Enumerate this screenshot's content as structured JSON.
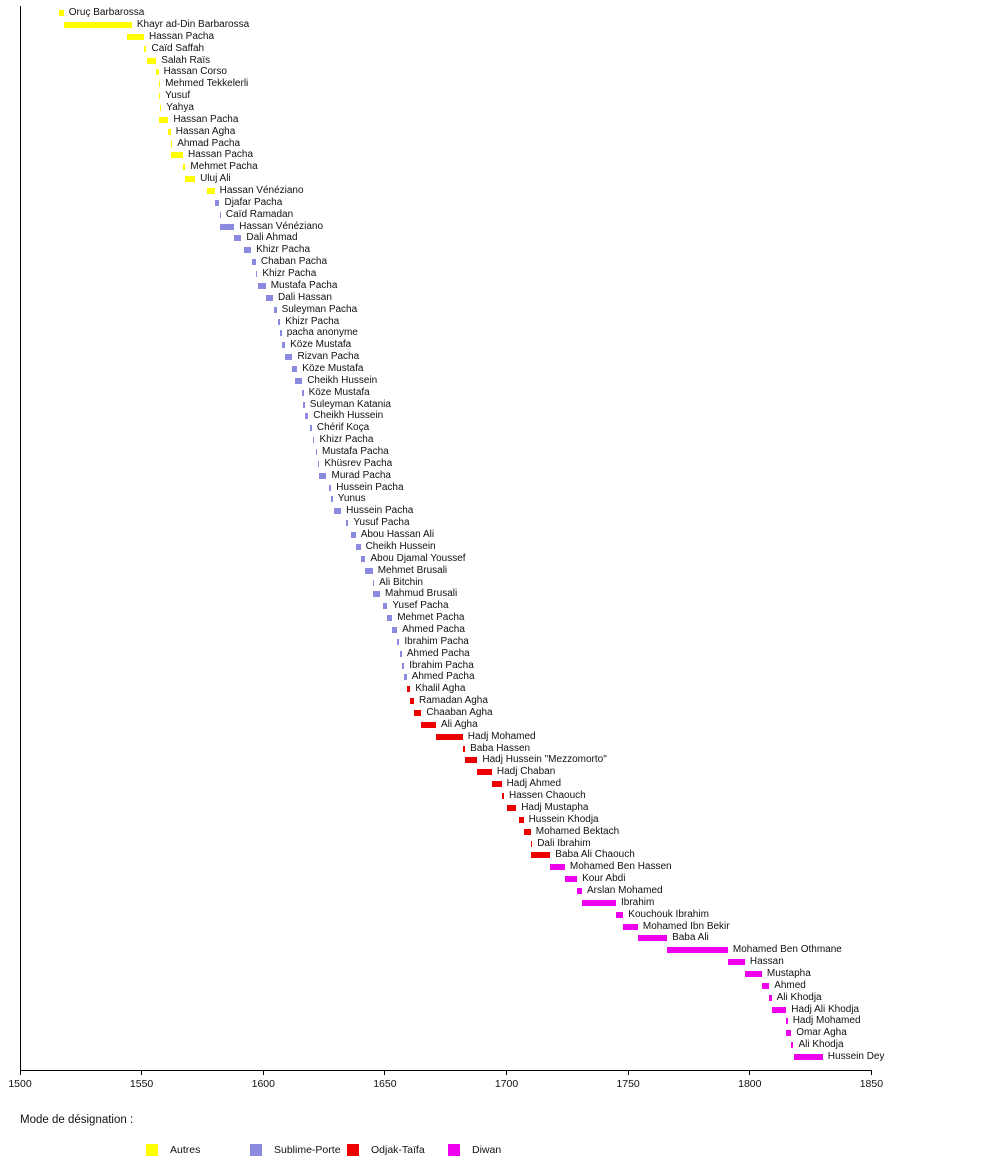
{
  "chart_data": {
    "type": "bar",
    "subtype": "gantt-timeline",
    "title": "",
    "xlabel": "",
    "ylabel": "",
    "xlim": [
      1500,
      1850
    ],
    "x_ticks": [
      1500,
      1550,
      1600,
      1650,
      1700,
      1750,
      1800,
      1850
    ],
    "grid": false,
    "legend": {
      "title": "Mode de désignation :",
      "position": "bottom",
      "items": [
        {
          "key": "autres",
          "label": "Autres",
          "color": "#FFFF00"
        },
        {
          "key": "sublime",
          "label": "Sublime-Porte",
          "color": "#8A8ADF"
        },
        {
          "key": "odjak",
          "label": "Odjak-Taïfa",
          "color": "#EE0000"
        },
        {
          "key": "diwan",
          "label": "Diwan",
          "color": "#EE00EE"
        }
      ]
    },
    "bars": [
      {
        "name": "Oruç Barbarossa",
        "start": 1516,
        "end": 1518,
        "group": "autres"
      },
      {
        "name": "Khayr ad-Din Barbarossa",
        "start": 1518,
        "end": 1546,
        "group": "autres"
      },
      {
        "name": "Hassan Pacha",
        "start": 1544,
        "end": 1551,
        "group": "autres"
      },
      {
        "name": "Caïd Saffah",
        "start": 1551,
        "end": 1552,
        "group": "autres"
      },
      {
        "name": "Salah Raïs",
        "start": 1552,
        "end": 1556,
        "group": "autres"
      },
      {
        "name": "Hassan Corso",
        "start": 1556,
        "end": 1557,
        "group": "autres"
      },
      {
        "name": "Mehmed Tekkelerli",
        "start": 1557,
        "end": 1557.5,
        "group": "autres"
      },
      {
        "name": "Yusuf",
        "start": 1557,
        "end": 1557.5,
        "group": "autres"
      },
      {
        "name": "Yahya",
        "start": 1557.5,
        "end": 1558,
        "group": "autres"
      },
      {
        "name": "Hassan Pacha",
        "start": 1557,
        "end": 1561,
        "group": "autres"
      },
      {
        "name": "Hassan Agha",
        "start": 1561,
        "end": 1562,
        "group": "autres"
      },
      {
        "name": "Ahmad Pacha",
        "start": 1562,
        "end": 1562.5,
        "group": "autres"
      },
      {
        "name": "Hassan Pacha",
        "start": 1562,
        "end": 1567,
        "group": "autres"
      },
      {
        "name": "Mehmet Pacha",
        "start": 1567,
        "end": 1568,
        "group": "autres"
      },
      {
        "name": "Uluj Ali",
        "start": 1568,
        "end": 1572,
        "group": "autres"
      },
      {
        "name": "Hassan Vénéziano",
        "start": 1577,
        "end": 1580,
        "group": "autres"
      },
      {
        "name": "Djafar Pacha",
        "start": 1580,
        "end": 1582,
        "group": "sublime"
      },
      {
        "name": "Caïd Ramadan",
        "start": 1582,
        "end": 1582.5,
        "group": "sublime"
      },
      {
        "name": "Hassan Vénéziano",
        "start": 1582,
        "end": 1588,
        "group": "sublime"
      },
      {
        "name": "Dali Ahmad",
        "start": 1588,
        "end": 1591,
        "group": "sublime"
      },
      {
        "name": "Khizr Pacha",
        "start": 1592,
        "end": 1595,
        "group": "sublime"
      },
      {
        "name": "Chaban Pacha",
        "start": 1595.5,
        "end": 1597,
        "group": "sublime"
      },
      {
        "name": "Khizr Pacha",
        "start": 1597,
        "end": 1597.5,
        "group": "sublime"
      },
      {
        "name": "Mustafa Pacha",
        "start": 1598,
        "end": 1601,
        "group": "sublime"
      },
      {
        "name": "Dali Hassan",
        "start": 1601,
        "end": 1604,
        "group": "sublime"
      },
      {
        "name": "Suleyman Pacha",
        "start": 1604.5,
        "end": 1605.5,
        "group": "sublime"
      },
      {
        "name": "Khizr Pacha",
        "start": 1606,
        "end": 1607,
        "group": "sublime"
      },
      {
        "name": "pacha anonyme",
        "start": 1607,
        "end": 1607.5,
        "group": "sublime"
      },
      {
        "name": "Köze Mustafa",
        "start": 1607.5,
        "end": 1609,
        "group": "sublime"
      },
      {
        "name": "Rizvan Pacha",
        "start": 1609,
        "end": 1612,
        "group": "sublime"
      },
      {
        "name": "Köze Mustafa",
        "start": 1612,
        "end": 1614,
        "group": "sublime"
      },
      {
        "name": "Cheikh Hussein",
        "start": 1613,
        "end": 1616,
        "group": "sublime"
      },
      {
        "name": "Köze Mustafa",
        "start": 1616,
        "end": 1616.5,
        "group": "sublime"
      },
      {
        "name": "Suleyman Katania",
        "start": 1616.5,
        "end": 1617,
        "group": "sublime"
      },
      {
        "name": "Cheikh Hussein",
        "start": 1617,
        "end": 1618.5,
        "group": "sublime"
      },
      {
        "name": "Chérif Koça",
        "start": 1619,
        "end": 1620,
        "group": "sublime"
      },
      {
        "name": "Khizr Pacha",
        "start": 1620.5,
        "end": 1621,
        "group": "sublime"
      },
      {
        "name": "Mustafa Pacha",
        "start": 1621.5,
        "end": 1622,
        "group": "sublime"
      },
      {
        "name": "Khüsrev Pacha",
        "start": 1622.5,
        "end": 1623,
        "group": "sublime"
      },
      {
        "name": "Murad Pacha",
        "start": 1623,
        "end": 1626,
        "group": "sublime"
      },
      {
        "name": "Hussein Pacha",
        "start": 1627,
        "end": 1628,
        "group": "sublime"
      },
      {
        "name": "Yunus",
        "start": 1628,
        "end": 1628.5,
        "group": "sublime"
      },
      {
        "name": "Hussein Pacha",
        "start": 1629,
        "end": 1632,
        "group": "sublime"
      },
      {
        "name": "Yusuf Pacha",
        "start": 1634,
        "end": 1635,
        "group": "sublime"
      },
      {
        "name": "Abou Hassan Ali",
        "start": 1636,
        "end": 1638,
        "group": "sublime"
      },
      {
        "name": "Cheikh Hussein",
        "start": 1638,
        "end": 1640,
        "group": "sublime"
      },
      {
        "name": "Abou Djamal Youssef",
        "start": 1640,
        "end": 1642,
        "group": "sublime"
      },
      {
        "name": "Mehmet Brusali",
        "start": 1642,
        "end": 1645,
        "group": "sublime"
      },
      {
        "name": "Ali Bitchin",
        "start": 1645,
        "end": 1645.5,
        "group": "sublime"
      },
      {
        "name": "Mahmud Brusali",
        "start": 1645,
        "end": 1648,
        "group": "sublime"
      },
      {
        "name": "Yusef Pacha",
        "start": 1649,
        "end": 1651,
        "group": "sublime"
      },
      {
        "name": "Mehmet Pacha",
        "start": 1651,
        "end": 1653,
        "group": "sublime"
      },
      {
        "name": "Ahmed Pacha",
        "start": 1653,
        "end": 1655,
        "group": "sublime"
      },
      {
        "name": "Ibrahim Pacha",
        "start": 1655,
        "end": 1656,
        "group": "sublime"
      },
      {
        "name": "Ahmed Pacha",
        "start": 1656,
        "end": 1657,
        "group": "sublime"
      },
      {
        "name": "Ibrahim Pacha",
        "start": 1657,
        "end": 1658,
        "group": "sublime"
      },
      {
        "name": "Ahmed Pacha",
        "start": 1658,
        "end": 1659,
        "group": "sublime"
      },
      {
        "name": "Khalil Agha",
        "start": 1659,
        "end": 1660.5,
        "group": "odjak"
      },
      {
        "name": "Ramadan Agha",
        "start": 1660.5,
        "end": 1662,
        "group": "odjak"
      },
      {
        "name": "Chaaban Agha",
        "start": 1662,
        "end": 1665,
        "group": "odjak"
      },
      {
        "name": "Ali Agha",
        "start": 1665,
        "end": 1671,
        "group": "odjak"
      },
      {
        "name": "Hadj Mohamed",
        "start": 1671,
        "end": 1682,
        "group": "odjak"
      },
      {
        "name": "Baba Hassen",
        "start": 1682,
        "end": 1683,
        "group": "odjak"
      },
      {
        "name": "Hadj Hussein \"Mezzomorto\"",
        "start": 1683,
        "end": 1688,
        "group": "odjak"
      },
      {
        "name": "Hadj Chaban",
        "start": 1688,
        "end": 1694,
        "group": "odjak"
      },
      {
        "name": "Hadj Ahmed",
        "start": 1694,
        "end": 1698,
        "group": "odjak"
      },
      {
        "name": "Hassen Chaouch",
        "start": 1698,
        "end": 1699,
        "group": "odjak"
      },
      {
        "name": "Hadj Mustapha",
        "start": 1700,
        "end": 1704,
        "group": "odjak"
      },
      {
        "name": "Hussein Khodja",
        "start": 1705,
        "end": 1707,
        "group": "odjak"
      },
      {
        "name": "Mohamed Bektach",
        "start": 1707,
        "end": 1710,
        "group": "odjak"
      },
      {
        "name": "Dali Ibrahim",
        "start": 1710,
        "end": 1710.5,
        "group": "odjak"
      },
      {
        "name": "Baba Ali Chaouch",
        "start": 1710,
        "end": 1718,
        "group": "odjak"
      },
      {
        "name": "Mohamed Ben Hassen",
        "start": 1718,
        "end": 1724,
        "group": "diwan"
      },
      {
        "name": "Kour Abdi",
        "start": 1724,
        "end": 1729,
        "group": "diwan"
      },
      {
        "name": "Arslan Mohamed",
        "start": 1729,
        "end": 1731,
        "group": "diwan"
      },
      {
        "name": "Ibrahim",
        "start": 1731,
        "end": 1745,
        "group": "diwan"
      },
      {
        "name": "Kouchouk Ibrahim",
        "start": 1745,
        "end": 1748,
        "group": "diwan"
      },
      {
        "name": "Mohamed Ibn Bekir",
        "start": 1748,
        "end": 1754,
        "group": "diwan"
      },
      {
        "name": "Baba Ali",
        "start": 1754,
        "end": 1766,
        "group": "diwan"
      },
      {
        "name": "Mohamed Ben Othmane",
        "start": 1766,
        "end": 1791,
        "group": "diwan"
      },
      {
        "name": "Hassan",
        "start": 1791,
        "end": 1798,
        "group": "diwan"
      },
      {
        "name": "Mustapha",
        "start": 1798,
        "end": 1805,
        "group": "diwan"
      },
      {
        "name": "Ahmed",
        "start": 1805,
        "end": 1808,
        "group": "diwan"
      },
      {
        "name": "Ali Khodja",
        "start": 1808,
        "end": 1809,
        "group": "diwan"
      },
      {
        "name": "Hadj Ali Khodja",
        "start": 1809,
        "end": 1815,
        "group": "diwan"
      },
      {
        "name": "Hadj Mohamed",
        "start": 1815,
        "end": 1815.5,
        "group": "diwan"
      },
      {
        "name": "Omar Agha",
        "start": 1815,
        "end": 1817,
        "group": "diwan"
      },
      {
        "name": "Ali Khodja",
        "start": 1817,
        "end": 1818,
        "group": "diwan"
      },
      {
        "name": "Hussein Dey",
        "start": 1818,
        "end": 1830,
        "group": "diwan"
      }
    ]
  }
}
